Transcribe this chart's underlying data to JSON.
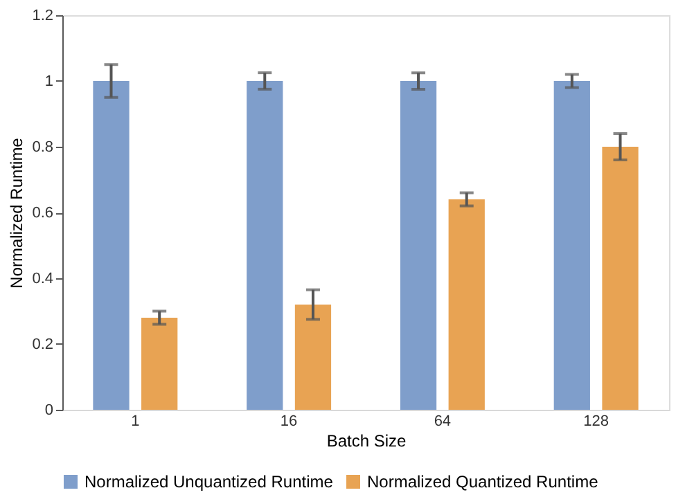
{
  "chart_data": {
    "type": "bar",
    "xlabel": "Batch Size",
    "ylabel": "Normalized Runtime",
    "categories": [
      "1",
      "16",
      "64",
      "128"
    ],
    "series": [
      {
        "name": "Normalized Unquantized Runtime",
        "color": "#7f9ecb",
        "values": [
          1,
          1,
          1,
          1
        ],
        "errors": [
          0.05,
          0.025,
          0.025,
          0.02
        ]
      },
      {
        "name": "Normalized Quantized Runtime",
        "color": "#e8a353",
        "values": [
          0.28,
          0.32,
          0.64,
          0.8
        ],
        "errors": [
          0.02,
          0.045,
          0.02,
          0.04
        ]
      }
    ],
    "ylim": [
      0,
      1.2
    ],
    "yticks": [
      0,
      0.2,
      0.4,
      0.6,
      0.8,
      1,
      1.2
    ],
    "grid": false,
    "legend": "bottom"
  }
}
